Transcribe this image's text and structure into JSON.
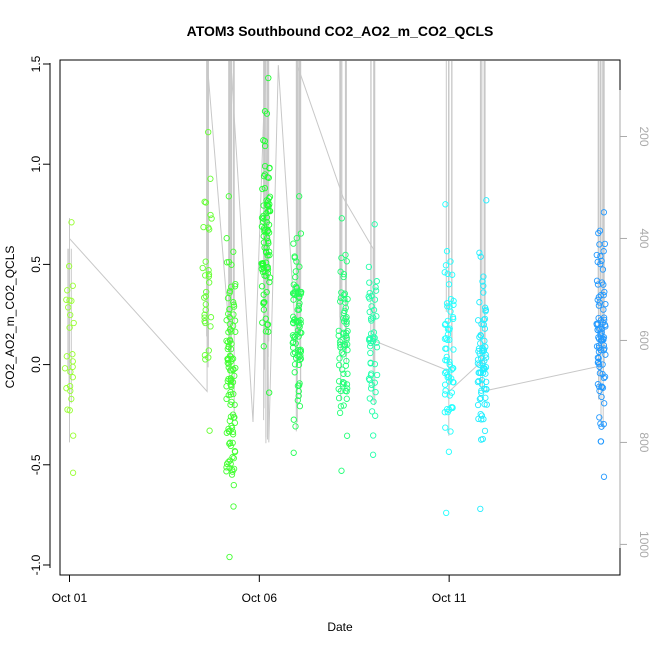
{
  "chart_data": {
    "type": "scatter",
    "title": "ATOM3 Southbound CO2_AO2_m_CO2_QCLS",
    "xlabel": "Date",
    "ylabel": "CO2_AO2_m_CO2_QCLS",
    "xlim": [
      "2017-09-30T18:00",
      "2017-10-15T12:00"
    ],
    "ylim": [
      -1.05,
      1.52
    ],
    "x_ticks": [
      {
        "value": "2017-10-01",
        "label": "Oct 01"
      },
      {
        "value": "2017-10-06",
        "label": "Oct 06"
      },
      {
        "value": "2017-10-11",
        "label": "Oct 11"
      }
    ],
    "y_ticks": [
      {
        "value": -1.0,
        "label": "-1.0"
      },
      {
        "value": -0.5,
        "label": "-0.5"
      },
      {
        "value": 0.0,
        "label": "0.0"
      },
      {
        "value": 0.5,
        "label": "0.5"
      },
      {
        "value": 1.0,
        "label": "1.0"
      },
      {
        "value": 1.5,
        "label": "1.5"
      }
    ],
    "y2_axis": {
      "side": "right",
      "reversed": true,
      "range": [
        50,
        1060
      ],
      "color": "#aaaaaa",
      "ticks": [
        {
          "value": 200,
          "label": "200"
        },
        {
          "value": 400,
          "label": "400"
        },
        {
          "value": 600,
          "label": "600"
        },
        {
          "value": 800,
          "label": "800"
        },
        {
          "value": 1000,
          "label": "1000"
        }
      ]
    },
    "grid": false,
    "legend": "none",
    "marker": "open-circle",
    "colors": {
      "pressure_line": "#c8c8c8",
      "flight_colors": [
        "#99ff33",
        "#66ff33",
        "#44ff33",
        "#22ff33",
        "#22ff55",
        "#22ff77",
        "#22ffaa",
        "#22ffbb",
        "#22ffff",
        "#22eeff",
        "#2299ff"
      ]
    },
    "flights": [
      {
        "time": "2017-10-01T00:00",
        "y_min": -0.54,
        "y_max": 0.71,
        "n": 26,
        "color": "#99ff33",
        "p_min": 420,
        "p_max": 790
      },
      {
        "time": "2017-10-04T15:00",
        "y_min": -0.33,
        "y_max": 1.16,
        "n": 32,
        "color": "#66ff33",
        "p_min": 50,
        "p_max": 790
      },
      {
        "time": "2017-10-05T06:00",
        "y_min": -0.96,
        "y_max": 0.84,
        "n": 110,
        "color": "#44ff33",
        "p_min": 50,
        "p_max": 760
      },
      {
        "time": "2017-10-06T04:00",
        "y_min": -0.14,
        "y_max": 1.43,
        "n": 90,
        "color": "#22ff33",
        "p_min": 50,
        "p_max": 810
      },
      {
        "time": "2017-10-07T00:00",
        "y_min": -0.44,
        "y_max": 0.84,
        "n": 80,
        "color": "#22ff55",
        "p_min": 50,
        "p_max": 780
      },
      {
        "time": "2017-10-08T05:00",
        "y_min": -0.53,
        "y_max": 0.73,
        "n": 70,
        "color": "#22ff77",
        "p_min": 50,
        "p_max": 780
      },
      {
        "time": "2017-10-09T00:00",
        "y_min": -0.45,
        "y_max": 0.7,
        "n": 50,
        "color": "#22ffaa",
        "p_min": 50,
        "p_max": 740
      },
      {
        "time": "2017-10-11T00:00",
        "y_min": -0.74,
        "y_max": 0.8,
        "n": 65,
        "color": "#22ffff",
        "p_min": 50,
        "p_max": 790
      },
      {
        "time": "2017-10-11T21:00",
        "y_min": -0.72,
        "y_max": 0.82,
        "n": 75,
        "color": "#22eeff",
        "p_min": 50,
        "p_max": 730
      },
      {
        "time": "2017-10-15T00:00",
        "y_min": -0.56,
        "y_max": 0.76,
        "n": 85,
        "color": "#2299ff",
        "p_min": 50,
        "p_max": 820
      }
    ],
    "pressure_trace": [
      {
        "time": "2017-10-01T00:00",
        "p": 360
      },
      {
        "time": "2017-10-01T00:00",
        "p": 800
      },
      {
        "time": "2017-10-01T00:00",
        "p": 400
      },
      {
        "time": "2017-10-04T15:00",
        "p": 700
      },
      {
        "time": "2017-10-04T15:00",
        "p": 50
      },
      {
        "time": "2017-10-05T06:00",
        "p": 620
      },
      {
        "time": "2017-10-05T06:00",
        "p": 50
      },
      {
        "time": "2017-10-05T20:00",
        "p": 760
      },
      {
        "time": "2017-10-06T04:00",
        "p": 50
      },
      {
        "time": "2017-10-06T06:00",
        "p": 800
      },
      {
        "time": "2017-10-06T12:00",
        "p": 60
      },
      {
        "time": "2017-10-07T00:00",
        "p": 640
      },
      {
        "time": "2017-10-07T00:00",
        "p": 60
      },
      {
        "time": "2017-10-08T05:00",
        "p": 320
      },
      {
        "time": "2017-10-09T00:00",
        "p": 420
      },
      {
        "time": "2017-10-09T00:00",
        "p": 720
      },
      {
        "time": "2017-10-09T00:00",
        "p": 600
      },
      {
        "time": "2017-10-11T00:00",
        "p": 660
      },
      {
        "time": "2017-10-11T00:00",
        "p": 700
      },
      {
        "time": "2017-10-11T21:00",
        "p": 640
      },
      {
        "time": "2017-10-11T21:00",
        "p": 700
      },
      {
        "time": "2017-10-15T00:00",
        "p": 650
      },
      {
        "time": "2017-10-15T00:00",
        "p": 50
      }
    ]
  }
}
